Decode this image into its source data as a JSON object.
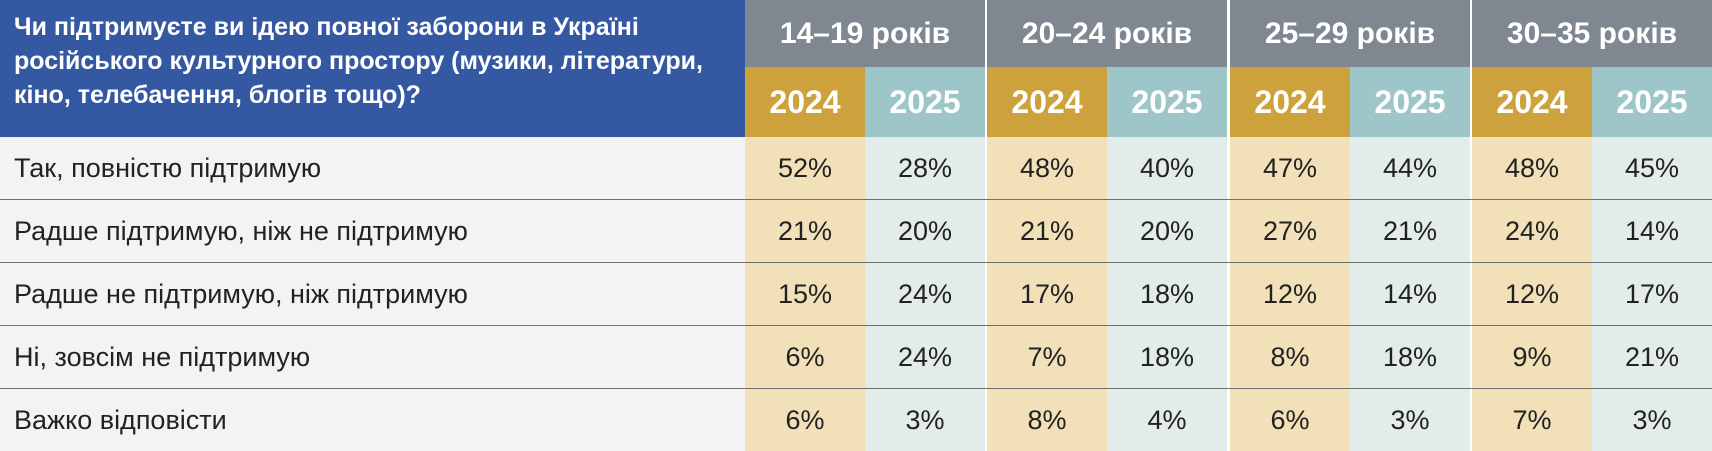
{
  "question": "Чи підтримуєте ви ідею повної заборони в Україні російського культурного простору (музики, літератури, кіно, телебачення, блогів тощо)?",
  "chart_data": {
    "type": "table",
    "groups": [
      "14–19 років",
      "20–24 років",
      "25–29 років",
      "30–35 років"
    ],
    "years": [
      "2024",
      "2025"
    ],
    "rows": [
      {
        "label": "Так, повністю підтримую",
        "values": [
          "52%",
          "28%",
          "48%",
          "40%",
          "47%",
          "44%",
          "48%",
          "45%"
        ]
      },
      {
        "label": "Радше підтримую, ніж не підтримую",
        "values": [
          "21%",
          "20%",
          "21%",
          "20%",
          "27%",
          "21%",
          "24%",
          "14%"
        ]
      },
      {
        "label": "Радше не підтримую, ніж підтримую",
        "values": [
          "15%",
          "24%",
          "17%",
          "18%",
          "12%",
          "14%",
          "12%",
          "17%"
        ]
      },
      {
        "label": "Ні, зовсім не підтримую",
        "values": [
          "6%",
          "24%",
          "7%",
          "18%",
          "8%",
          "18%",
          "9%",
          "21%"
        ]
      },
      {
        "label": "Важко відповісти",
        "values": [
          "6%",
          "3%",
          "8%",
          "4%",
          "6%",
          "3%",
          "7%",
          "3%"
        ]
      }
    ]
  },
  "colors": {
    "question_bg": "#3558a2",
    "group_header_bg": "#7f8791",
    "year_2024_bg": "#cda13b",
    "year_2025_bg": "#9ec6c8",
    "cell_2024_bg": "#f2e0b8",
    "cell_2025_bg": "#e2ecea",
    "label_row_bg": "#f3f3f4"
  }
}
